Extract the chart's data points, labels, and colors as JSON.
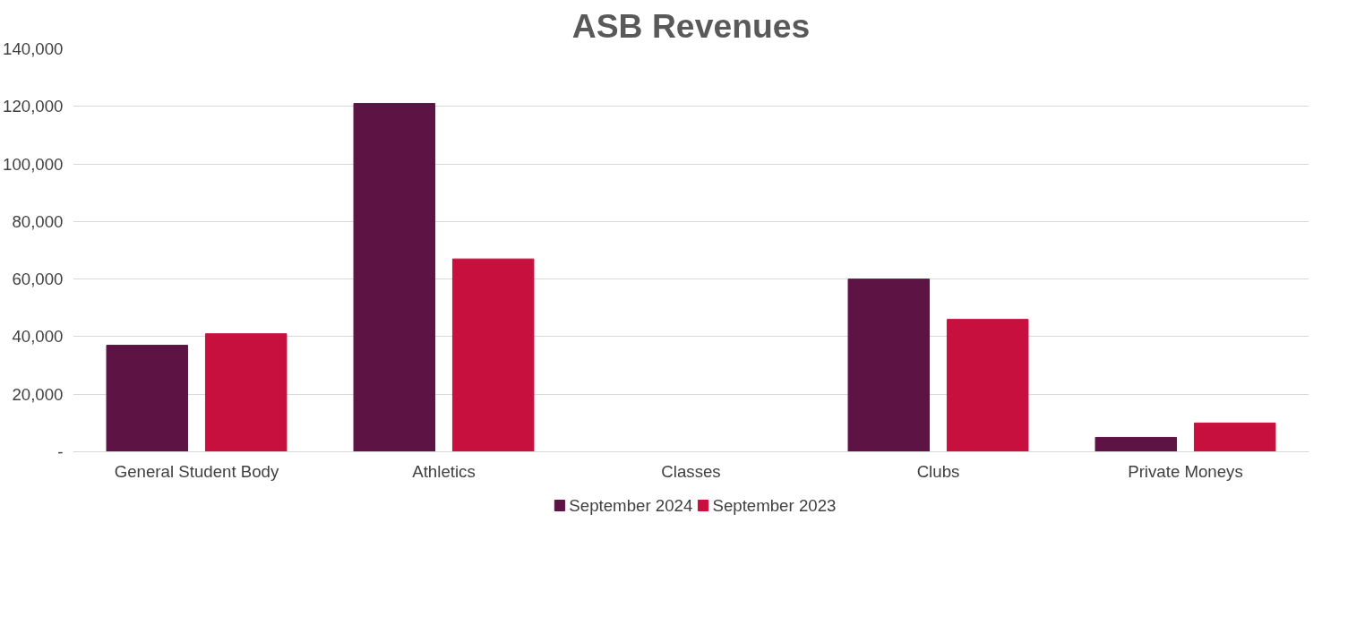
{
  "chart_data": {
    "type": "bar",
    "title": "ASB Revenues",
    "categories": [
      "General Student Body",
      "Athletics",
      "Classes",
      "Clubs",
      "Private Moneys"
    ],
    "series": [
      {
        "name": "September 2024",
        "color": "#5e1345",
        "values": [
          37000,
          121000,
          null,
          60000,
          5000
        ]
      },
      {
        "name": "September 2023",
        "color": "#c8103e",
        "values": [
          41000,
          67000,
          null,
          46000,
          10000
        ]
      }
    ],
    "ylim": [
      0,
      140000
    ],
    "yticks": [
      {
        "value": 0,
        "label": "-"
      },
      {
        "value": 20000,
        "label": "20,000"
      },
      {
        "value": 40000,
        "label": "40,000"
      },
      {
        "value": 60000,
        "label": "60,000"
      },
      {
        "value": 80000,
        "label": "80,000"
      },
      {
        "value": 100000,
        "label": "100,000"
      },
      {
        "value": 120000,
        "label": "120,000"
      },
      {
        "value": 140000,
        "label": "140,000"
      }
    ],
    "grid": "y",
    "legend": "bottom"
  }
}
